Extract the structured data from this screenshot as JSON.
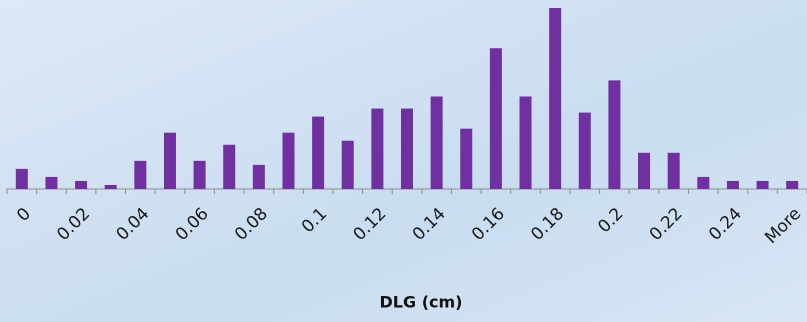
{
  "chart_data": {
    "type": "bar",
    "x_label": "DLG (cm)",
    "categories": [
      "0",
      null,
      "0.02",
      null,
      "0.04",
      null,
      "0.06",
      null,
      "0.08",
      null,
      "0.1",
      null,
      "0.12",
      null,
      "0.14",
      null,
      "0.16",
      null,
      "0.18",
      null,
      "0.2",
      null,
      "0.22",
      null,
      "0.24",
      null,
      "More"
    ],
    "values": [
      5,
      3,
      2,
      1,
      7,
      14,
      7,
      11,
      6,
      14,
      18,
      12,
      20,
      20,
      23,
      15,
      35,
      23,
      45,
      19,
      27,
      9,
      9,
      3,
      2,
      2,
      2
    ],
    "color": "#7030a0",
    "ylim": [
      0,
      45
    ]
  }
}
